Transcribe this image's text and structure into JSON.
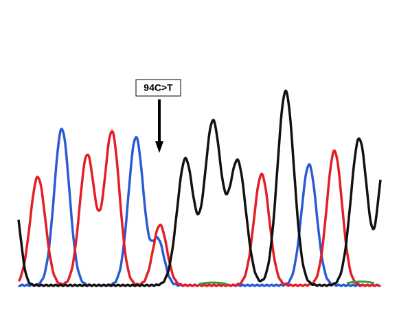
{
  "annotation": {
    "label": "94C>T"
  }
}
